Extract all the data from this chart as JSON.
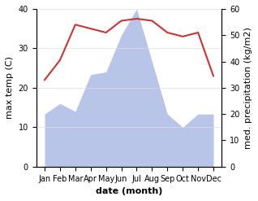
{
  "months": [
    "Jan",
    "Feb",
    "Mar",
    "Apr",
    "May",
    "Jun",
    "Jul",
    "Aug",
    "Sep",
    "Oct",
    "Nov",
    "Dec"
  ],
  "temperature": [
    22,
    27,
    36,
    35,
    34,
    37,
    37.5,
    37,
    34,
    33,
    34,
    23
  ],
  "precipitation": [
    20,
    24,
    21,
    35,
    36,
    50,
    60,
    40,
    20,
    15,
    20,
    20
  ],
  "temp_color": "#cc3333",
  "precip_fill_color": "#b8c4e8",
  "temp_ylim": [
    0,
    40
  ],
  "precip_ylim": [
    0,
    60
  ],
  "temp_yticks": [
    0,
    10,
    20,
    30,
    40
  ],
  "precip_yticks": [
    0,
    10,
    20,
    30,
    40,
    50,
    60
  ],
  "xlabel": "date (month)",
  "ylabel_left": "max temp (C)",
  "ylabel_right": "med. precipitation (kg/m2)",
  "background_color": "#ffffff",
  "label_fontsize": 8,
  "tick_fontsize": 7,
  "xlabel_fontsize": 8
}
